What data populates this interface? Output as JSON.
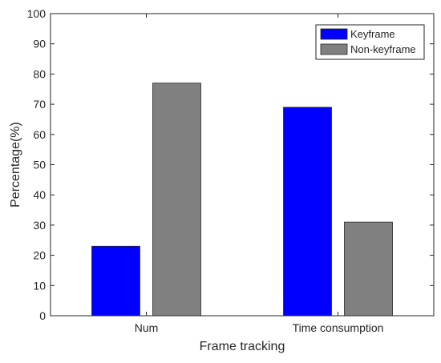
{
  "chart_data": {
    "type": "bar",
    "categories": [
      "Num",
      "Time consumption"
    ],
    "series": [
      {
        "name": "Keyframe",
        "values": [
          23,
          69
        ],
        "color": "#0000ff"
      },
      {
        "name": "Non-keyframe",
        "values": [
          77,
          31
        ],
        "color": "#808080"
      }
    ],
    "xlabel": "Frame tracking",
    "ylabel": "Percentage(%)",
    "ylim": [
      0,
      100
    ],
    "yticks": [
      0,
      10,
      20,
      30,
      40,
      50,
      60,
      70,
      80,
      90,
      100
    ],
    "grid": false,
    "legend_position": "top-right"
  }
}
